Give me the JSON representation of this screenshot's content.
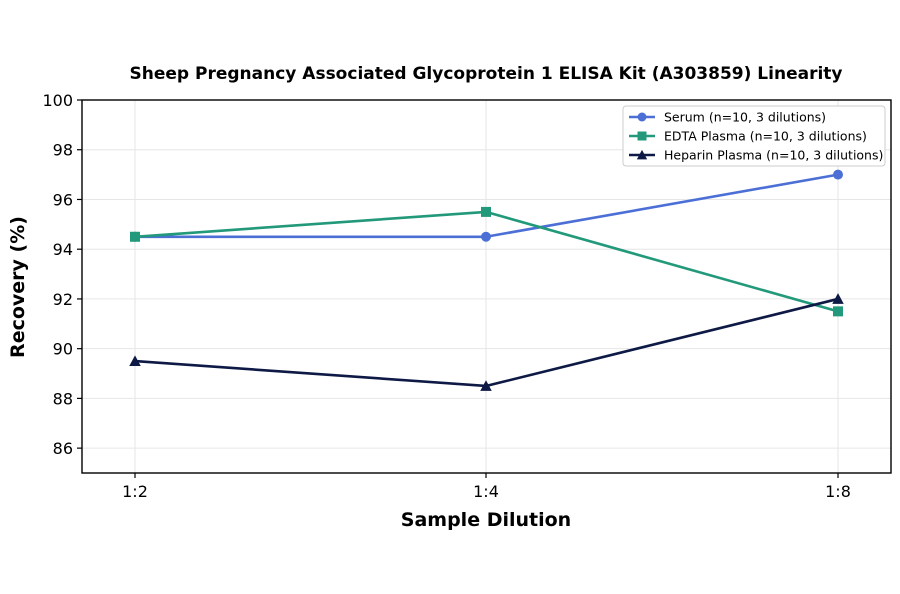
{
  "chart_data": {
    "type": "line",
    "title": "Sheep Pregnancy Associated Glycoprotein 1 ELISA Kit (A303859) Linearity",
    "xlabel": "Sample Dilution",
    "ylabel": "Recovery (%)",
    "categories": [
      "1:2",
      "1:4",
      "1:8"
    ],
    "ylim": [
      85,
      100
    ],
    "yticks": [
      86,
      88,
      90,
      92,
      94,
      96,
      98,
      100
    ],
    "grid": true,
    "legend_position": "top-right",
    "series": [
      {
        "name": "Serum (n=10, 3 dilutions)",
        "values": [
          94.5,
          94.5,
          97.0
        ],
        "color": "#4C6FD6",
        "marker": "circle"
      },
      {
        "name": "EDTA Plasma (n=10, 3 dilutions)",
        "values": [
          94.5,
          95.5,
          91.5
        ],
        "color": "#22997A",
        "marker": "square"
      },
      {
        "name": "Heparin Plasma (n=10, 3 dilutions)",
        "values": [
          89.5,
          88.5,
          92.0
        ],
        "color": "#0E1A45",
        "marker": "triangle"
      }
    ]
  }
}
